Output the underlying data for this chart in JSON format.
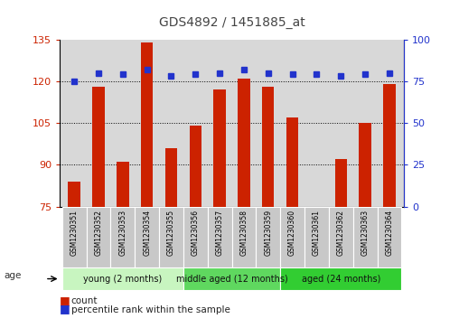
{
  "title": "GDS4892 / 1451885_at",
  "samples": [
    "GSM1230351",
    "GSM1230352",
    "GSM1230353",
    "GSM1230354",
    "GSM1230355",
    "GSM1230356",
    "GSM1230357",
    "GSM1230358",
    "GSM1230359",
    "GSM1230360",
    "GSM1230361",
    "GSM1230362",
    "GSM1230363",
    "GSM1230364"
  ],
  "counts": [
    84,
    118,
    91,
    134,
    96,
    104,
    117,
    121,
    118,
    107,
    75,
    92,
    105,
    119
  ],
  "percentiles": [
    75,
    80,
    79,
    82,
    78,
    79,
    80,
    82,
    80,
    79,
    79,
    78,
    79,
    80
  ],
  "ylim_left": [
    75,
    135
  ],
  "ylim_right": [
    0,
    100
  ],
  "yticks_left": [
    75,
    90,
    105,
    120,
    135
  ],
  "yticks_right": [
    0,
    25,
    50,
    75,
    100
  ],
  "groups": [
    {
      "label": "young (2 months)",
      "start": 0,
      "end": 4,
      "color": "#C8F5C0"
    },
    {
      "label": "middle aged (12 months)",
      "start": 5,
      "end": 8,
      "color": "#5FD85F"
    },
    {
      "label": "aged (24 months)",
      "start": 9,
      "end": 13,
      "color": "#32CD32"
    }
  ],
  "bar_color": "#CC2200",
  "dot_color": "#2233CC",
  "bg_color": "#D8D8D8",
  "title_color": "#444444",
  "left_axis_color": "#CC2200",
  "right_axis_color": "#2233CC",
  "grid_color": "#000000"
}
